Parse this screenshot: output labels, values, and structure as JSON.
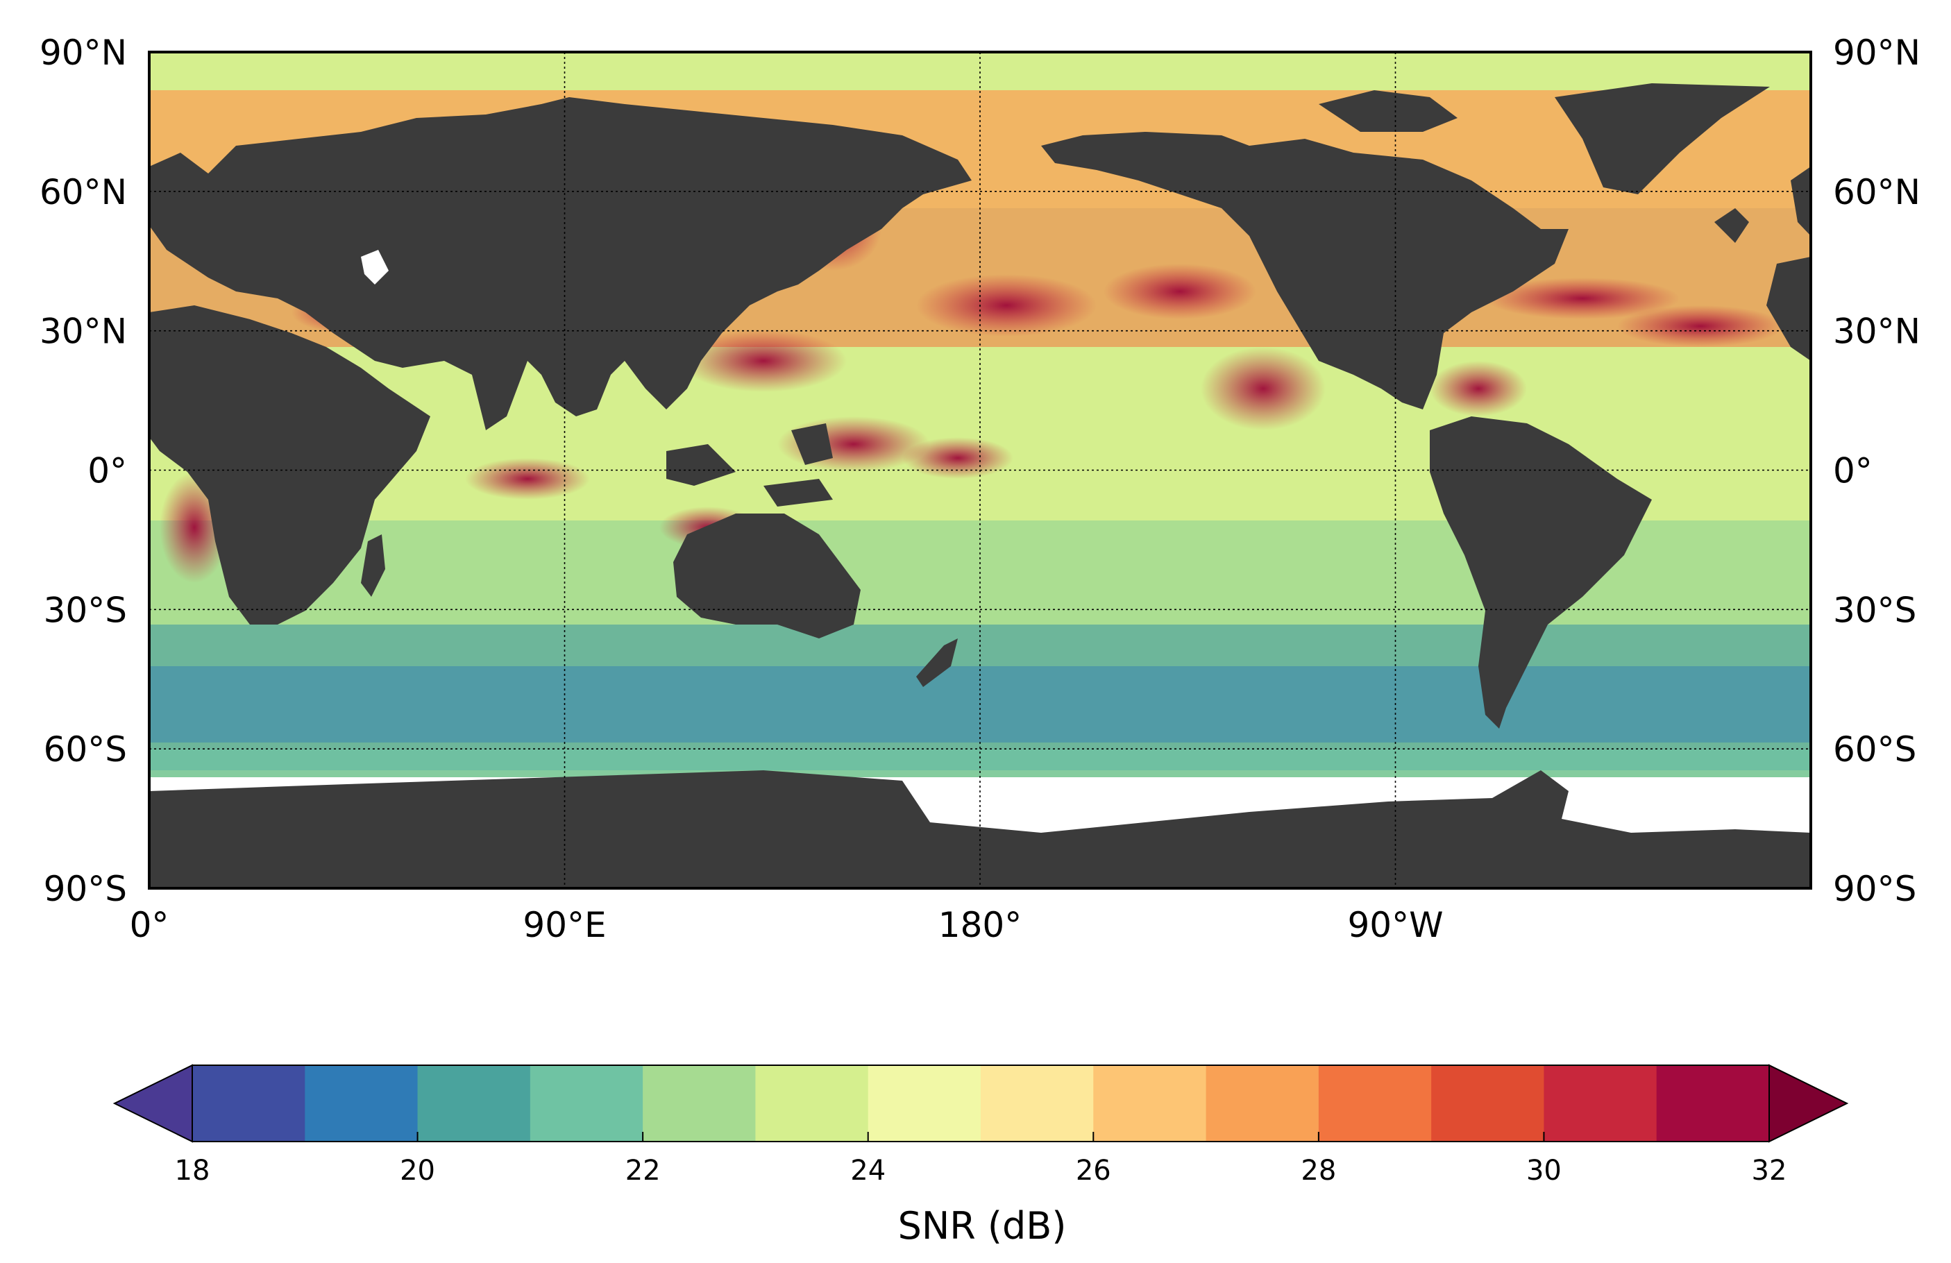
{
  "map": {
    "lat_labels": [
      "90°N",
      "60°N",
      "30°N",
      "0°",
      "30°S",
      "60°S",
      "90°S"
    ],
    "lon_labels": [
      "0°",
      "90°E",
      "180°",
      "90°W"
    ],
    "lat_values": [
      90,
      60,
      30,
      0,
      -30,
      -60,
      -90
    ],
    "lon_values": [
      0,
      90,
      180,
      270
    ],
    "lon_range": [
      0,
      360
    ],
    "lat_range": [
      -90,
      90
    ],
    "grid": "dotted",
    "colors": {
      "land": "#3b3b3b",
      "no_data": "#ffffff",
      "frame": "#000000"
    }
  },
  "colorbar": {
    "label": "SNR (dB)",
    "tick_labels": [
      "18",
      "20",
      "22",
      "24",
      "26",
      "28",
      "30",
      "32"
    ],
    "ticks": [
      18,
      20,
      22,
      24,
      26,
      28,
      30,
      32
    ],
    "range": [
      18,
      32
    ],
    "step": 1,
    "extend": "both",
    "colors": [
      "#4a3a93",
      "#3f4ea1",
      "#2f7bb6",
      "#4aa39d",
      "#6fc3a3",
      "#a6db91",
      "#d5ef8e",
      "#f1f8a6",
      "#fde89a",
      "#fdc574",
      "#f9a155",
      "#f2743f",
      "#e04c31",
      "#c8273c",
      "#a30a3f",
      "#7d0030"
    ]
  }
}
